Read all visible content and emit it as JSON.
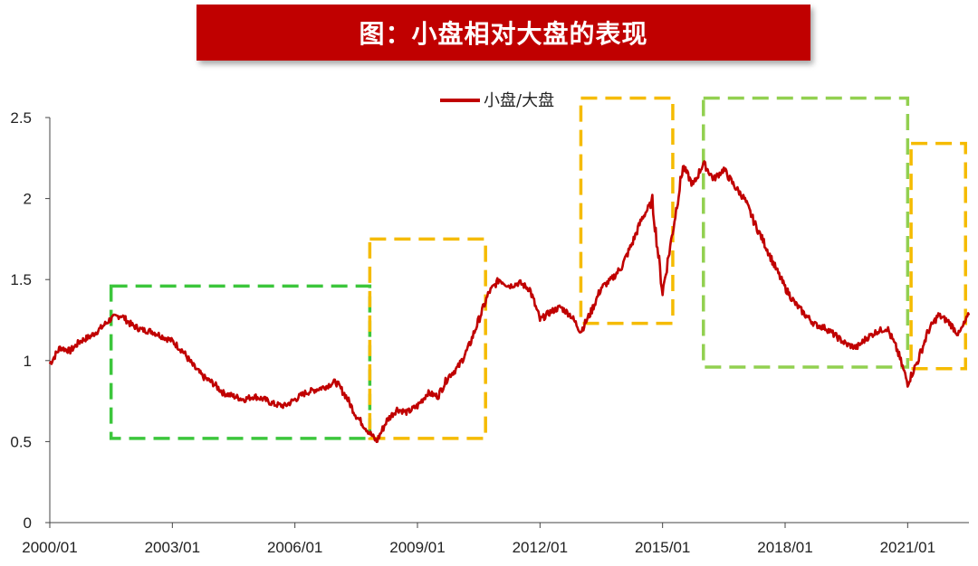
{
  "chart_data": {
    "type": "line",
    "title": "图：小盘相对大盘的表现",
    "xlabel": "",
    "ylabel": "",
    "xlim": [
      "2000/01",
      "2022/07"
    ],
    "ylim": [
      0,
      2.5
    ],
    "y_ticks": [
      "0",
      "0.5",
      "1",
      "1.5",
      "2",
      "2.5"
    ],
    "x_ticks": [
      "2000/01",
      "2003/01",
      "2006/01",
      "2009/01",
      "2012/01",
      "2015/01",
      "2018/01",
      "2021/01"
    ],
    "grid": false,
    "legend_position": "top-center",
    "series": [
      {
        "name": "小盘/大盘",
        "color": "#c00000",
        "points": [
          [
            "2000/01",
            0.98
          ],
          [
            "2000/04",
            1.08
          ],
          [
            "2000/07",
            1.06
          ],
          [
            "2000/10",
            1.12
          ],
          [
            "2001/01",
            1.15
          ],
          [
            "2001/04",
            1.2
          ],
          [
            "2001/07",
            1.26
          ],
          [
            "2001/10",
            1.28
          ],
          [
            "2002/01",
            1.22
          ],
          [
            "2002/04",
            1.19
          ],
          [
            "2002/07",
            1.18
          ],
          [
            "2002/10",
            1.15
          ],
          [
            "2003/01",
            1.12
          ],
          [
            "2003/04",
            1.06
          ],
          [
            "2003/07",
            0.97
          ],
          [
            "2003/10",
            0.9
          ],
          [
            "2004/01",
            0.86
          ],
          [
            "2004/04",
            0.8
          ],
          [
            "2004/07",
            0.78
          ],
          [
            "2004/10",
            0.76
          ],
          [
            "2005/01",
            0.78
          ],
          [
            "2005/04",
            0.76
          ],
          [
            "2005/07",
            0.73
          ],
          [
            "2005/10",
            0.72
          ],
          [
            "2006/01",
            0.76
          ],
          [
            "2006/04",
            0.8
          ],
          [
            "2006/07",
            0.82
          ],
          [
            "2006/10",
            0.84
          ],
          [
            "2007/01",
            0.87
          ],
          [
            "2007/04",
            0.78
          ],
          [
            "2007/07",
            0.66
          ],
          [
            "2007/10",
            0.58
          ],
          [
            "2008/01",
            0.5
          ],
          [
            "2008/04",
            0.63
          ],
          [
            "2008/07",
            0.7
          ],
          [
            "2008/10",
            0.68
          ],
          [
            "2009/01",
            0.72
          ],
          [
            "2009/04",
            0.8
          ],
          [
            "2009/07",
            0.78
          ],
          [
            "2009/10",
            0.9
          ],
          [
            "2010/01",
            0.96
          ],
          [
            "2010/04",
            1.08
          ],
          [
            "2010/07",
            1.25
          ],
          [
            "2010/10",
            1.42
          ],
          [
            "2011/01",
            1.5
          ],
          [
            "2011/04",
            1.46
          ],
          [
            "2011/07",
            1.48
          ],
          [
            "2011/10",
            1.44
          ],
          [
            "2012/01",
            1.25
          ],
          [
            "2012/04",
            1.3
          ],
          [
            "2012/07",
            1.33
          ],
          [
            "2012/10",
            1.28
          ],
          [
            "2013/01",
            1.18
          ],
          [
            "2013/04",
            1.3
          ],
          [
            "2013/07",
            1.45
          ],
          [
            "2013/10",
            1.5
          ],
          [
            "2014/01",
            1.58
          ],
          [
            "2014/04",
            1.72
          ],
          [
            "2014/07",
            1.88
          ],
          [
            "2014/10",
            1.98
          ],
          [
            "2015/01",
            1.42
          ],
          [
            "2015/04",
            1.8
          ],
          [
            "2015/07",
            2.2
          ],
          [
            "2015/10",
            2.08
          ],
          [
            "2016/01",
            2.22
          ],
          [
            "2016/04",
            2.12
          ],
          [
            "2016/07",
            2.18
          ],
          [
            "2016/10",
            2.08
          ],
          [
            "2017/01",
            2.0
          ],
          [
            "2017/04",
            1.85
          ],
          [
            "2017/07",
            1.72
          ],
          [
            "2017/10",
            1.58
          ],
          [
            "2018/01",
            1.45
          ],
          [
            "2018/04",
            1.35
          ],
          [
            "2018/07",
            1.28
          ],
          [
            "2018/10",
            1.22
          ],
          [
            "2019/01",
            1.2
          ],
          [
            "2019/04",
            1.15
          ],
          [
            "2019/07",
            1.1
          ],
          [
            "2019/10",
            1.08
          ],
          [
            "2020/01",
            1.14
          ],
          [
            "2020/04",
            1.18
          ],
          [
            "2020/07",
            1.2
          ],
          [
            "2020/10",
            1.06
          ],
          [
            "2021/01",
            0.86
          ],
          [
            "2021/04",
            1.0
          ],
          [
            "2021/07",
            1.18
          ],
          [
            "2021/10",
            1.28
          ],
          [
            "2022/01",
            1.24
          ],
          [
            "2022/04",
            1.16
          ],
          [
            "2022/07",
            1.28
          ]
        ]
      }
    ],
    "highlight_boxes": [
      {
        "x0": "2001/07",
        "x1": "2007/11",
        "y0": 0.52,
        "y1": 1.46,
        "color": "#3cc63c"
      },
      {
        "x0": "2007/11",
        "x1": "2010/09",
        "y0": 0.52,
        "y1": 1.75,
        "color": "#f5bb00"
      },
      {
        "x0": "2013/01",
        "x1": "2015/04",
        "y0": 1.23,
        "y1": 2.62,
        "color": "#f5bb00"
      },
      {
        "x0": "2016/01",
        "x1": "2021/01",
        "y0": 0.96,
        "y1": 2.62,
        "color": "#92d050"
      },
      {
        "x0": "2021/02",
        "x1": "2022/06",
        "y0": 0.95,
        "y1": 2.34,
        "color": "#f5bb00"
      }
    ]
  }
}
